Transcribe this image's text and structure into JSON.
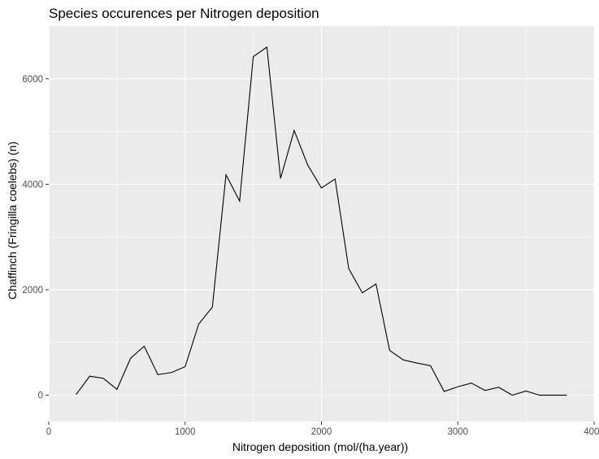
{
  "chart_data": {
    "type": "line",
    "title": "Species occurences per Nitrogen deposition",
    "xlabel": "Nitrogen deposition (mol/(ha.year))",
    "ylabel": "Chaffinch (Fringilla coelebs) (n)",
    "xlim": [
      0,
      4000
    ],
    "ylim": [
      -500,
      7000
    ],
    "x_ticks": [
      0,
      1000,
      2000,
      3000,
      4000
    ],
    "y_ticks": [
      0,
      2000,
      4000,
      6000
    ],
    "x_tick_labels": [
      "0",
      "1000",
      "2000",
      "3000",
      "4000"
    ],
    "y_tick_labels": [
      "0",
      "2000",
      "4000",
      "6000"
    ],
    "grid": true,
    "legend": "none",
    "colors": {
      "panel": "#ebebeb",
      "grid": "#ffffff",
      "line": "#000000",
      "tick_text": "#4d4d4d"
    },
    "series": [
      {
        "x": [
          200,
          300,
          400,
          500,
          600,
          700,
          800,
          900,
          1000,
          1100,
          1200,
          1300,
          1400,
          1500,
          1600,
          1700,
          1800,
          1900,
          2000,
          2100,
          2200,
          2300,
          2400,
          2500,
          2600,
          2700,
          2800,
          2900,
          3000,
          3100,
          3200,
          3300,
          3400,
          3500,
          3600,
          3700,
          3800
        ],
        "values": [
          10,
          360,
          320,
          110,
          700,
          930,
          390,
          430,
          540,
          1350,
          1670,
          4180,
          3680,
          6420,
          6600,
          4110,
          5020,
          4360,
          3930,
          4100,
          2400,
          1940,
          2110,
          850,
          670,
          610,
          560,
          70,
          160,
          230,
          90,
          150,
          0,
          80,
          0,
          0,
          0
        ]
      }
    ]
  }
}
